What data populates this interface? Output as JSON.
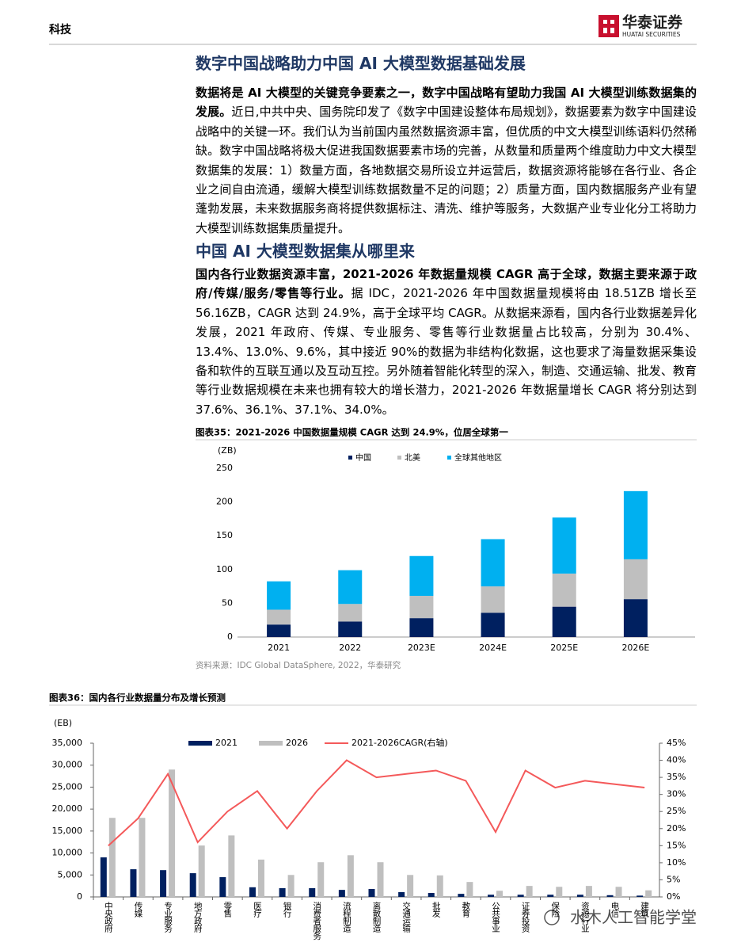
{
  "header": {
    "section": "科技",
    "logo_cn": "华泰证券",
    "logo_en": "HUATAI SECURITIES"
  },
  "sections": [
    {
      "title": "数字中国战略助力中国 AI 大模型数据基础发展",
      "lead": "数据将是 AI 大模型的关键竞争要素之一，数字中国战略有望助力我国 AI 大模型训练数据集的发展。",
      "body": "近日,中共中央、国务院印发了《数字中国建设整体布局规划》，数据要素为数字中国建设战略中的关键一环。我们认为当前国内虽然数据资源丰富，但优质的中文大模型训练语料仍然稀缺。数字中国战略将极大促进我国数据要素市场的完善，从数量和质量两个维度助力中文大模型数据集的发展：1）数量方面，各地数据交易所设立并运营后，数据资源将能够在各行业、各企业之间自由流通，缓解大模型训练数据数量不足的问题；2）质量方面，国内数据服务产业有望蓬勃发展，未来数据服务商将提供数据标注、清洗、维护等服务，大数据产业专业化分工将助力大模型训练数据集质量提升。"
    },
    {
      "title": "中国 AI 大模型数据集从哪里来",
      "lead": "国内各行业数据资源丰富，2021-2026 年数据量规模 CAGR 高于全球，数据主要来源于政府/传媒/服务/零售等行业。",
      "body": "据 IDC，2021-2026 年中国数据量规模将由 18.51ZB 增长至 56.16ZB，CAGR 达到 24.9%，高于全球平均 CAGR。从数据来源看，国内各行业数据差异化发展，2021 年政府、传媒、专业服务、零售等行业数据量占比较高，分别为 30.4%、13.4%、13.0%、9.6%，其中接近 90%的数据为非结构化数据，这也要求了海量数据采集设备和软件的互联互通以及互动互控。另外随着智能化转型的深入，制造、交通运输、批发、教育等行业数据规模在未来也拥有较大的增长潜力，2021-2026 年数据量增长 CAGR 将分别达到 37.6%、36.1%、37.1%、34.0%。"
    }
  ],
  "chart_data": [
    {
      "type": "stacked_bar",
      "title": "图表35：2021-2026 中国数据量规模 CAGR 达到 24.9%，位居全球第一",
      "y_label": "(ZB)",
      "source": "资料来源：IDC Global DataSphere, 2022，华泰研究",
      "categories": [
        "2021",
        "2022",
        "2023E",
        "2024E",
        "2025E",
        "2026E"
      ],
      "series": [
        {
          "name": "中国",
          "color": "#002060",
          "values": [
            18.51,
            23,
            28,
            36,
            45,
            56.16
          ]
        },
        {
          "name": "北美",
          "color": "#bfbfbf",
          "values": [
            22,
            26,
            33,
            39,
            49,
            59
          ]
        },
        {
          "name": "全球其他地区",
          "color": "#00b0f0",
          "values": [
            42,
            50,
            59,
            70,
            83,
            101
          ]
        }
      ],
      "ylim": [
        0,
        250
      ],
      "yticks": [
        0,
        50,
        100,
        150,
        200,
        250
      ],
      "legend": "top"
    },
    {
      "type": "combo",
      "title": "图表36：国内各行业数据量分布及增长预测",
      "y_label": "(EB)",
      "categories": [
        "中央政府",
        "传媒",
        "专业服务",
        "地方政府",
        "零售",
        "医疗",
        "银行",
        "消费者服务",
        "流程制造",
        "离散制造",
        "交通运输",
        "批发",
        "教育",
        "公共事业",
        "证券投资",
        "保险",
        "资源行业",
        "电信",
        "建筑"
      ],
      "series": [
        {
          "name": "2021",
          "type": "bar",
          "color": "#002060",
          "values": [
            9000,
            6300,
            6100,
            5400,
            4500,
            2200,
            2000,
            2000,
            1600,
            1800,
            1100,
            900,
            700,
            500,
            500,
            500,
            500,
            400,
            300
          ]
        },
        {
          "name": "2026",
          "type": "bar",
          "color": "#bfbfbf",
          "values": [
            18000,
            18000,
            29000,
            11700,
            14000,
            8500,
            5000,
            7900,
            9500,
            7900,
            5000,
            4900,
            3400,
            1400,
            2500,
            2300,
            2500,
            2300,
            1500
          ]
        },
        {
          "name": "2021-2026CAGR(右轴)",
          "type": "line",
          "axis": "y2",
          "color": "#f4595a",
          "values": [
            15,
            23,
            36,
            16,
            25,
            31,
            20,
            31,
            40,
            35,
            36,
            37,
            34,
            19,
            37,
            32,
            34,
            33,
            32
          ]
        }
      ],
      "ylim": [
        0,
        35000
      ],
      "yticks": [
        0,
        {
          "value": 5000,
          "label": "5,000"
        },
        {
          "value": 10000,
          "label": "10,000"
        },
        {
          "value": 15000,
          "label": "15,000"
        },
        {
          "value": 20000,
          "label": "20,000"
        },
        {
          "value": 25000,
          "label": "25,000"
        },
        {
          "value": 30000,
          "label": "30,000"
        },
        {
          "value": 35000,
          "label": "35,000"
        }
      ],
      "y2lim": [
        0,
        45
      ],
      "y2ticks": [
        {
          "value": 0,
          "label": "0%"
        },
        {
          "value": 5,
          "label": "5%"
        },
        {
          "value": 10,
          "label": "10%"
        },
        {
          "value": 15,
          "label": "15%"
        },
        {
          "value": 20,
          "label": "20%"
        },
        {
          "value": 25,
          "label": "25%"
        },
        {
          "value": 30,
          "label": "30%"
        },
        {
          "value": 35,
          "label": "35%"
        },
        {
          "value": 40,
          "label": "40%"
        },
        {
          "value": 45,
          "label": "45%"
        }
      ],
      "legend": "top"
    }
  ],
  "watermark": "水木人工智能学堂"
}
